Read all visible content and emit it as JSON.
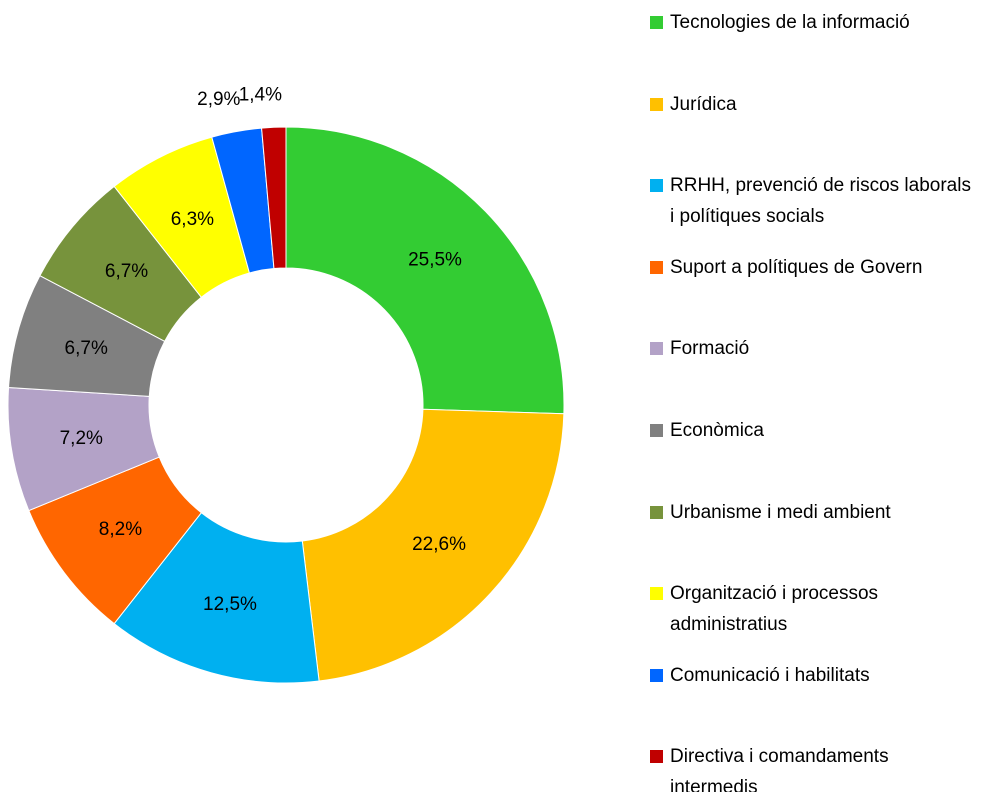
{
  "chart_data": {
    "type": "donut",
    "categories": [
      "Tecnologies de la informació",
      "Jurídica",
      "RRHH, prevenció de riscos laborals i polítiques socials",
      "Suport a polítiques de Govern",
      "Formació",
      "Econòmica",
      "Urbanisme i medi ambient",
      "Organització i processos administratius",
      "Comunicació i habilitats",
      "Directiva i comandaments intermedis"
    ],
    "values": [
      25.5,
      22.6,
      12.5,
      8.2,
      7.2,
      6.7,
      6.7,
      6.3,
      2.9,
      1.4
    ],
    "value_labels": [
      "25,5%",
      "22,6%",
      "12,5%",
      "8,2%",
      "7,2%",
      "6,7%",
      "6,7%",
      "6,3%",
      "2,9%",
      "1,4%"
    ],
    "colors": [
      "#33cc33",
      "#ffc000",
      "#00b0f0",
      "#ff6600",
      "#b3a2c7",
      "#808080",
      "#77933c",
      "#ffff00",
      "#0066ff",
      "#c00000"
    ],
    "legend": "right"
  }
}
